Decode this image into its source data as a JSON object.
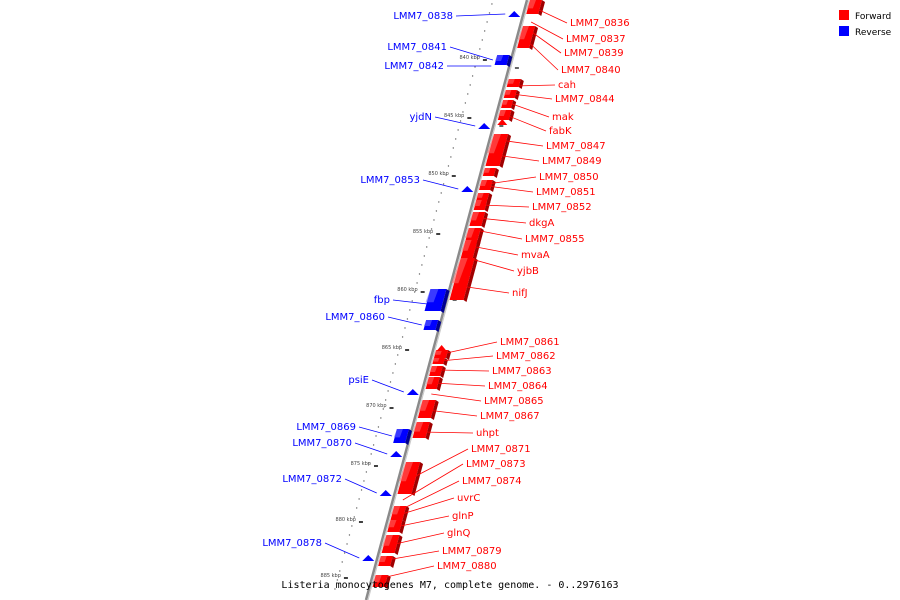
{
  "caption": "Listeria monocytogenes M7, complete genome. - 0..2976163",
  "legend": [
    {
      "label": "Forward",
      "color": "#ff0000"
    },
    {
      "label": "Reverse",
      "color": "#0000ff"
    }
  ],
  "colors": {
    "forward": "#ff0000",
    "forward_light": "#ff6a6a",
    "forward_dark": "#a00000",
    "reverse": "#0000ff",
    "reverse_light": "#6a6aff",
    "reverse_dark": "#000090",
    "backbone": "#8a8a8a"
  },
  "ticks": [
    "840 kbp",
    "845 kbp",
    "850 kbp",
    "855 kbp",
    "860 kbp",
    "865 kbp",
    "870 kbp",
    "875 kbp",
    "880 kbp",
    "885 kbp"
  ],
  "forward_genes": [
    "LMM7_0836",
    "LMM7_0837",
    "LMM7_0839",
    "LMM7_0840",
    "cah",
    "LMM7_0844",
    "mak",
    "fabK",
    "LMM7_0847",
    "LMM7_0849",
    "LMM7_0850",
    "LMM7_0851",
    "LMM7_0852",
    "dkgA",
    "LMM7_0855",
    "mvaA",
    "yjbB",
    "nifJ",
    "LMM7_0861",
    "LMM7_0862",
    "LMM7_0863",
    "LMM7_0864",
    "LMM7_0865",
    "LMM7_0867",
    "uhpt",
    "LMM7_0871",
    "LMM7_0873",
    "LMM7_0874",
    "uvrC",
    "glnP",
    "glnQ",
    "LMM7_0879",
    "LMM7_0880"
  ],
  "reverse_genes": [
    "LMM7_0838",
    "LMM7_0841",
    "LMM7_0842",
    "yjdN",
    "LMM7_0853",
    "fbp",
    "LMM7_0860",
    "psiE",
    "LMM7_0869",
    "LMM7_0870",
    "LMM7_0872",
    "LMM7_0878"
  ]
}
